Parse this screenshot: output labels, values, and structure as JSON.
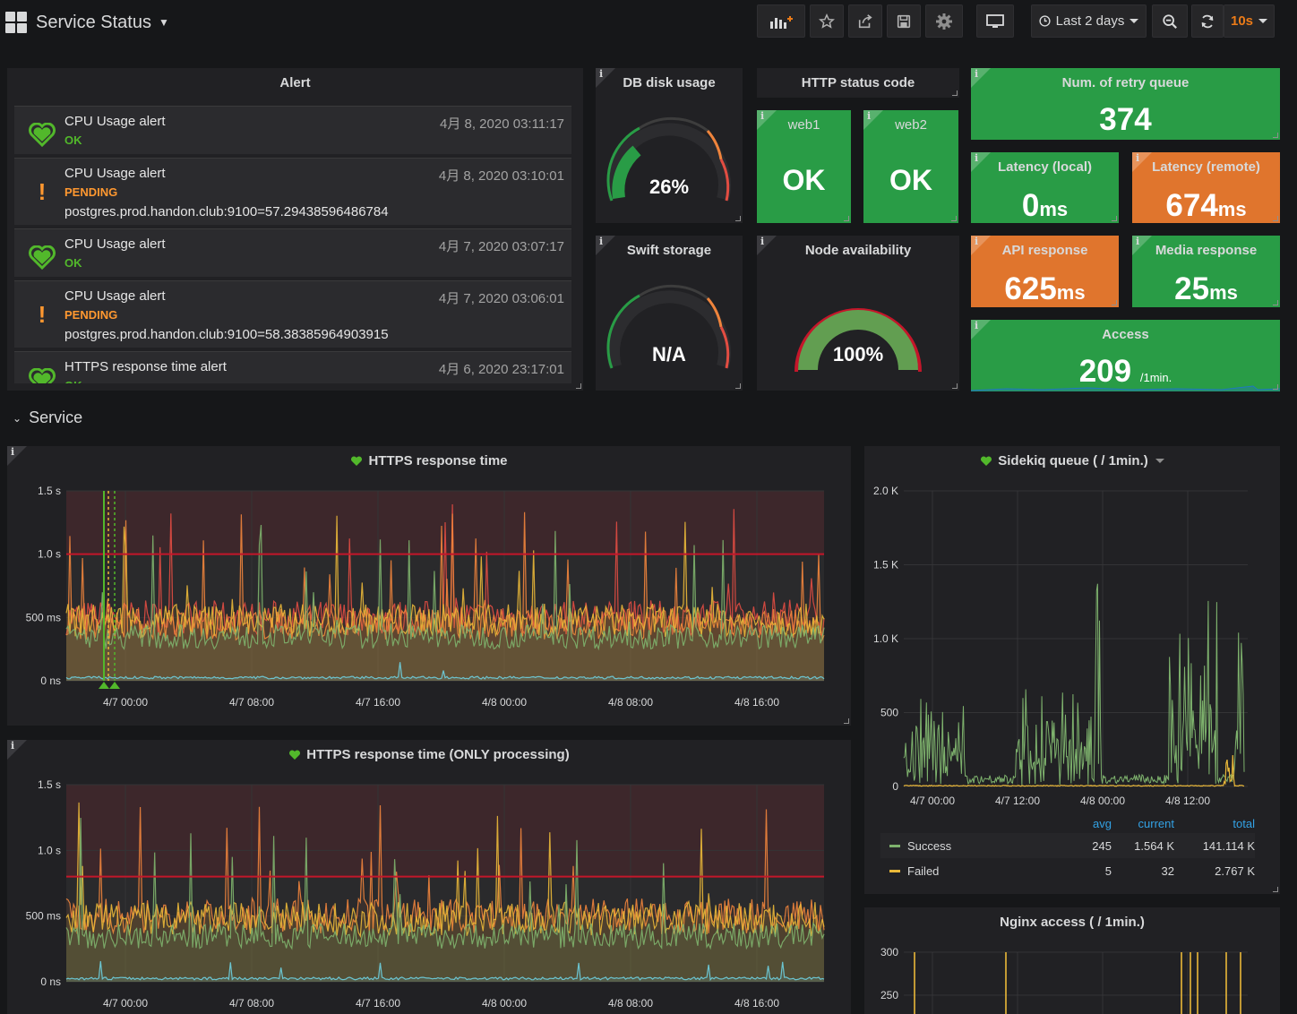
{
  "dashboard": {
    "title": "Service Status"
  },
  "toolbar": {
    "time_range": "Last 2 days",
    "refresh_rate": "10s"
  },
  "alert_panel": {
    "title": "Alert",
    "items": [
      {
        "name": "CPU Usage alert",
        "state": "OK",
        "time": "4月 8, 2020 03:11:17",
        "detail": ""
      },
      {
        "name": "CPU Usage alert",
        "state": "PENDING",
        "time": "4月 8, 2020 03:10:01",
        "detail": "postgres.prod.handon.club:9100=57.29438596486784"
      },
      {
        "name": "CPU Usage alert",
        "state": "OK",
        "time": "4月 7, 2020 03:07:17",
        "detail": ""
      },
      {
        "name": "CPU Usage alert",
        "state": "PENDING",
        "time": "4月 7, 2020 03:06:01",
        "detail": "postgres.prod.handon.club:9100=58.38385964903915"
      },
      {
        "name": "HTTPS response time alert",
        "state": "OK",
        "time": "4月 6, 2020 23:17:01",
        "detail": ""
      }
    ]
  },
  "db_disk": {
    "title": "DB disk usage",
    "value": "26%",
    "fraction": 0.26
  },
  "http_status": {
    "title": "HTTP status code",
    "web1": {
      "title": "web1",
      "value": "OK"
    },
    "web2": {
      "title": "web2",
      "value": "OK"
    }
  },
  "retry_queue": {
    "title": "Num. of retry queue",
    "value": "374"
  },
  "latency_local": {
    "title": "Latency (local)",
    "value": "0",
    "unit": "ms"
  },
  "latency_remote": {
    "title": "Latency (remote)",
    "value": "674",
    "unit": "ms"
  },
  "swift_storage": {
    "title": "Swift storage",
    "value": "N/A"
  },
  "node_availability": {
    "title": "Node availability",
    "value": "100%",
    "fraction": 1.0
  },
  "api_response": {
    "title": "API response",
    "value": "625",
    "unit": "ms"
  },
  "media_response": {
    "title": "Media response",
    "value": "25",
    "unit": "ms"
  },
  "access": {
    "title": "Access",
    "value": "209",
    "unit": "/1min."
  },
  "service_row": {
    "title": "Service"
  },
  "colors": {
    "green": "#299c46",
    "orange": "#e0752d",
    "ok_text": "#52b82b",
    "pending_text": "#ff9830",
    "threshold_red": "#c4162a",
    "series_red": "#e24d42",
    "series_orange": "#ef843c",
    "series_yellow": "#eab839",
    "series_green": "#7eb26d",
    "series_cyan": "#6ed0e0",
    "legend_blue": "#33a2e5"
  },
  "chart_data": [
    {
      "type": "area",
      "title": "HTTPS response time",
      "x_ticks": [
        "4/7 00:00",
        "4/7 08:00",
        "4/7 16:00",
        "4/8 00:00",
        "4/8 08:00",
        "4/8 16:00"
      ],
      "y_ticks": [
        "1.5 s",
        "1.0 s",
        "500 ms",
        "0 ns"
      ],
      "ylim": [
        0,
        1.5
      ],
      "threshold": 1.0,
      "series": [
        {
          "color": "#e24d42",
          "baseline": 0.5
        },
        {
          "color": "#ef843c",
          "baseline": 0.45
        },
        {
          "color": "#eab839",
          "baseline": 0.48
        },
        {
          "color": "#7eb26d",
          "baseline": 0.35
        },
        {
          "color": "#6ed0e0",
          "baseline": 0.02
        }
      ]
    },
    {
      "type": "area",
      "title": "HTTPS response time (ONLY processing)",
      "x_ticks": [
        "4/7 00:00",
        "4/7 08:00",
        "4/7 16:00",
        "4/8 00:00",
        "4/8 08:00",
        "4/8 16:00"
      ],
      "y_ticks": [
        "1.5 s",
        "1.0 s",
        "500 ms",
        "0 ns"
      ],
      "ylim": [
        0,
        1.5
      ],
      "threshold": 0.8,
      "series": [
        {
          "color": "#ef843c",
          "baseline": 0.5
        },
        {
          "color": "#eab839",
          "baseline": 0.48
        },
        {
          "color": "#7eb26d",
          "baseline": 0.35
        },
        {
          "color": "#6ed0e0",
          "baseline": 0.02
        }
      ]
    },
    {
      "type": "line",
      "title": "Sidekiq queue ( / 1min.)",
      "x_ticks": [
        "4/7 00:00",
        "4/7 12:00",
        "4/8 00:00",
        "4/8 12:00"
      ],
      "y_ticks": [
        "2.0 K",
        "1.5 K",
        "1.0 K",
        "500",
        "0"
      ],
      "ylim": [
        0,
        2000
      ],
      "legend_headers": [
        "avg",
        "current",
        "total"
      ],
      "series": [
        {
          "name": "Success",
          "color": "#7eb26d",
          "avg": "245",
          "current": "1.564 K",
          "total": "141.114 K"
        },
        {
          "name": "Failed",
          "color": "#eab839",
          "avg": "5",
          "current": "32",
          "total": "2.767 K"
        }
      ]
    },
    {
      "type": "line",
      "title": "Nginx access ( / 1min.)",
      "y_ticks": [
        "300",
        "250"
      ],
      "series": [
        {
          "color": "#eab839"
        }
      ]
    }
  ]
}
